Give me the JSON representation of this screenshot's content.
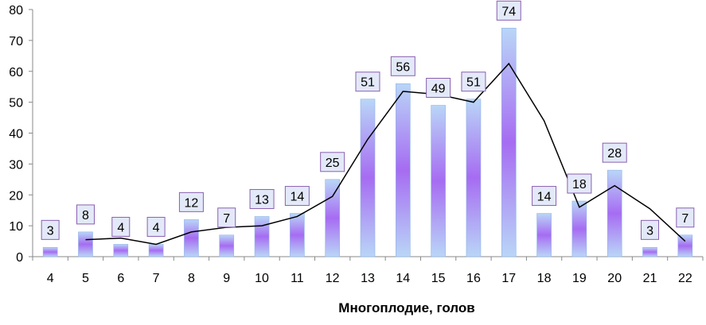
{
  "chart_data": {
    "type": "bar",
    "title": "",
    "xlabel": "Многоплодие, голов",
    "ylabel": "",
    "ylim": [
      0,
      80
    ],
    "yticks": [
      0,
      10,
      20,
      30,
      40,
      50,
      60,
      70,
      80
    ],
    "categories": [
      "4",
      "5",
      "6",
      "7",
      "8",
      "9",
      "10",
      "11",
      "12",
      "13",
      "14",
      "15",
      "16",
      "17",
      "18",
      "19",
      "20",
      "21",
      "22"
    ],
    "series": [
      {
        "name": "bars",
        "values": [
          3,
          8,
          4,
          4,
          12,
          7,
          13,
          14,
          25,
          51,
          56,
          49,
          51,
          74,
          14,
          18,
          28,
          3,
          7
        ]
      },
      {
        "name": "trend",
        "type": "line",
        "values": [
          null,
          5.5,
          6,
          4,
          8,
          9.5,
          10,
          13,
          19.5,
          38,
          53.5,
          52.5,
          50,
          62.5,
          44,
          16,
          23,
          15.5,
          5
        ]
      }
    ],
    "grid": false,
    "colors": {
      "bar_light": "#b9d6f7",
      "bar_dark": "#a66cf2",
      "label_bg": "#e3e9f8",
      "label_border": "#8a5fb0",
      "line": "#000000"
    }
  }
}
